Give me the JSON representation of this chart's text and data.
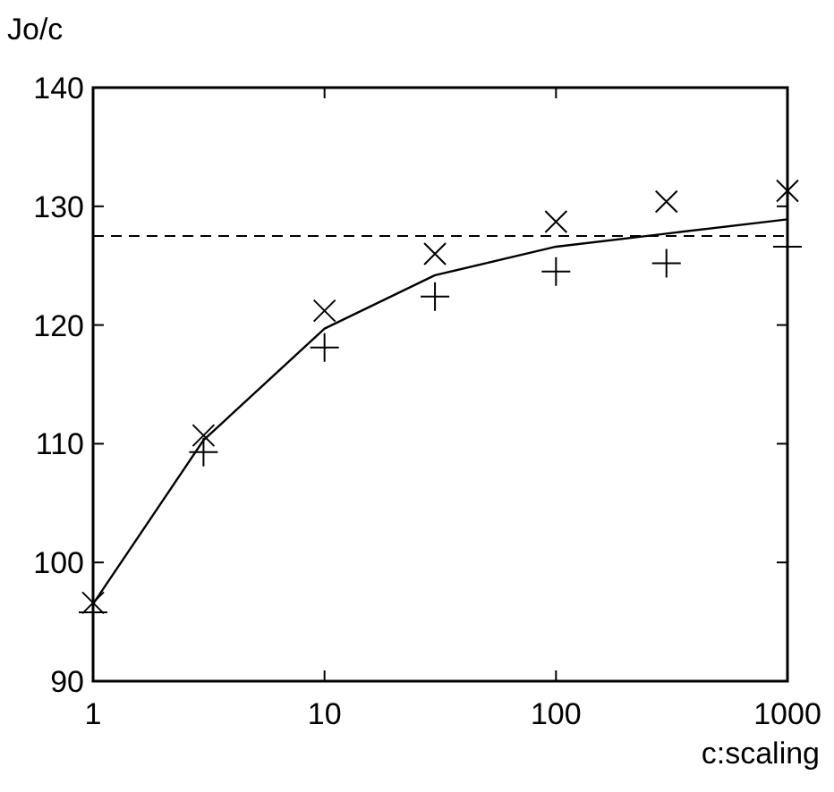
{
  "chart_data": {
    "type": "line",
    "ylabel": "Jo/c",
    "xlabel": "c:scaling",
    "log": "x",
    "xlim": [
      1,
      1000
    ],
    "xticks": [
      1,
      10,
      100,
      1000
    ],
    "ylim": [
      90,
      140
    ],
    "yticks": [
      90,
      100,
      110,
      120,
      130,
      140
    ],
    "grid": false,
    "series": [
      {
        "color": "#000000",
        "marker": "none",
        "line_style": "solid",
        "x": [
          1,
          3,
          10,
          30,
          100,
          300,
          1000
        ],
        "values": [
          96.5,
          110.3,
          119.7,
          124.2,
          126.6,
          127.7,
          128.9
        ]
      },
      {
        "type": "scatter",
        "color": "#000000",
        "marker": "x",
        "x": [
          1,
          3,
          10,
          30,
          100,
          300,
          1000
        ],
        "values": [
          96.6,
          110.7,
          121.2,
          126.0,
          128.7,
          130.4,
          131.3
        ]
      },
      {
        "type": "scatter",
        "color": "#000000",
        "marker": "cross",
        "x": [
          1,
          3,
          10,
          30,
          100,
          300,
          1000
        ],
        "values": [
          95.8,
          109.3,
          118.1,
          122.4,
          124.5,
          125.2,
          126.6
        ]
      }
    ],
    "ref_lines": [
      {
        "axis": "y",
        "value": 127.5,
        "line_style": "dashed",
        "color": "#000000"
      }
    ]
  }
}
